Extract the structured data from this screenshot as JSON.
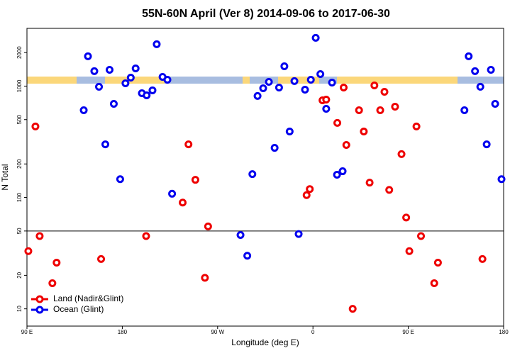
{
  "chart_data": {
    "type": "scatter",
    "title": "55N-60N April (Ver 8)   2014-09-06 to 2017-06-30",
    "xlabel": "Longitude (deg E)",
    "ylabel": "N Total",
    "xlim": [
      90,
      540
    ],
    "xticks": [
      {
        "value": 90,
        "label": "90 E"
      },
      {
        "value": 180,
        "label": "180"
      },
      {
        "value": 270,
        "label": "90 W"
      },
      {
        "value": 360,
        "label": "0"
      },
      {
        "value": 450,
        "label": "90 E"
      },
      {
        "value": 540,
        "label": "180"
      }
    ],
    "ylim": [
      7,
      3300
    ],
    "yticks": [
      10,
      20,
      50,
      100,
      200,
      500,
      1000,
      2000
    ],
    "log_y": true,
    "hline": 50,
    "legend": "lower left",
    "series": [
      {
        "name": "Land (Nadir&Glint)",
        "color": "#ee0000",
        "x": [
          91.3,
          98,
          102,
          114,
          118,
          160,
          202.5,
          237,
          242.5,
          249,
          258,
          261,
          354,
          357,
          369,
          372.5,
          383,
          389,
          391.5,
          397.5,
          403.5,
          408,
          413.5,
          418,
          423.5,
          427.5,
          432,
          437.5,
          443.6,
          448,
          451,
          457.7,
          462,
          474.5,
          478,
          520
        ],
        "values": [
          33,
          434,
          45,
          17,
          26,
          28,
          45,
          90,
          300,
          144,
          19,
          55,
          105,
          119,
          746,
          757,
          467,
          971,
          296,
          10,
          607,
          391,
          136,
          1014,
          607,
          889,
          117,
          653,
          245,
          66,
          33,
          434,
          45,
          17,
          26,
          28
        ]
      },
      {
        "name": "Ocean (Glint)",
        "color": "#0000ee",
        "x": [
          143.6,
          147.6,
          153.6,
          158,
          164,
          168,
          172,
          178,
          183,
          188,
          192.6,
          198.5,
          203,
          208.5,
          212.5,
          218,
          222.6,
          227,
          291.6,
          298,
          302.8,
          307.7,
          313,
          318.4,
          323.8,
          328,
          333,
          338,
          342.5,
          346.5,
          352.5,
          358,
          362.6,
          367,
          372.5,
          378,
          382.7,
          388,
          503,
          507,
          513,
          518,
          524,
          528,
          532,
          538
        ],
        "values": [
          607,
          1853,
          1362,
          986,
          300,
          1401,
          693,
          146,
          1060,
          1191,
          1442,
          863,
          826,
          916,
          2377,
          1210,
          1141,
          108,
          46,
          30,
          162,
          815,
          957,
          1092,
          279,
          971,
          1507,
          391,
          1109,
          47,
          929,
          1141,
          2712,
          1283,
          625,
          1076,
          160,
          172,
          607,
          1853,
          1362,
          986,
          300,
          1401,
          693,
          146
        ]
      }
    ]
  }
}
